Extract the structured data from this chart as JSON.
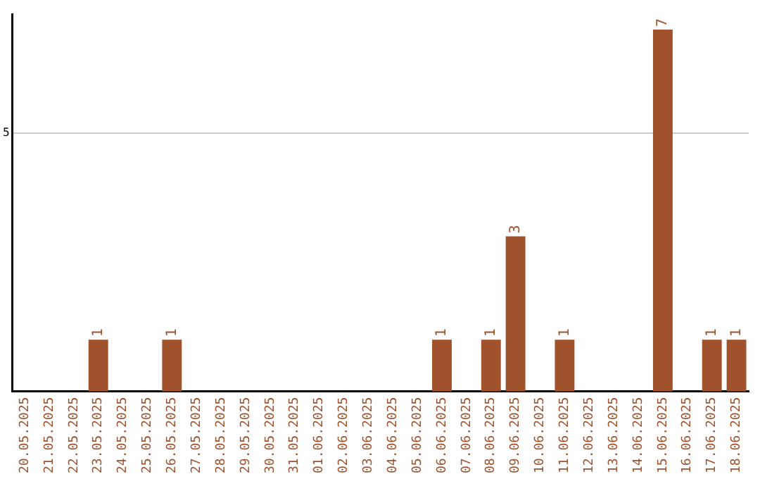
{
  "chart_data": {
    "type": "bar",
    "categories": [
      "20.05.2025",
      "21.05.2025",
      "22.05.2025",
      "23.05.2025",
      "24.05.2025",
      "25.05.2025",
      "26.05.2025",
      "27.05.2025",
      "28.05.2025",
      "29.05.2025",
      "30.05.2025",
      "31.05.2025",
      "01.06.2025",
      "02.06.2025",
      "03.06.2025",
      "04.06.2025",
      "05.06.2025",
      "06.06.2025",
      "07.06.2025",
      "08.06.2025",
      "09.06.2025",
      "10.06.2025",
      "11.06.2025",
      "12.06.2025",
      "13.06.2025",
      "14.06.2025",
      "15.06.2025",
      "16.06.2025",
      "17.06.2025",
      "18.06.2025"
    ],
    "values": [
      0,
      0,
      0,
      1,
      0,
      0,
      1,
      0,
      0,
      0,
      0,
      0,
      0,
      0,
      0,
      0,
      0,
      1,
      0,
      1,
      3,
      0,
      1,
      0,
      0,
      0,
      7,
      0,
      1,
      1
    ],
    "value_labels": [
      null,
      null,
      null,
      "1",
      null,
      null,
      "1",
      null,
      null,
      null,
      null,
      null,
      null,
      null,
      null,
      null,
      null,
      "1",
      null,
      "1",
      "3",
      null,
      "1",
      null,
      null,
      null,
      "7",
      null,
      "1",
      "1"
    ],
    "color": "#a0522d",
    "ylim": [
      0,
      7.3
    ],
    "yticks": [
      5
    ],
    "grid": "y",
    "legend": false
  }
}
